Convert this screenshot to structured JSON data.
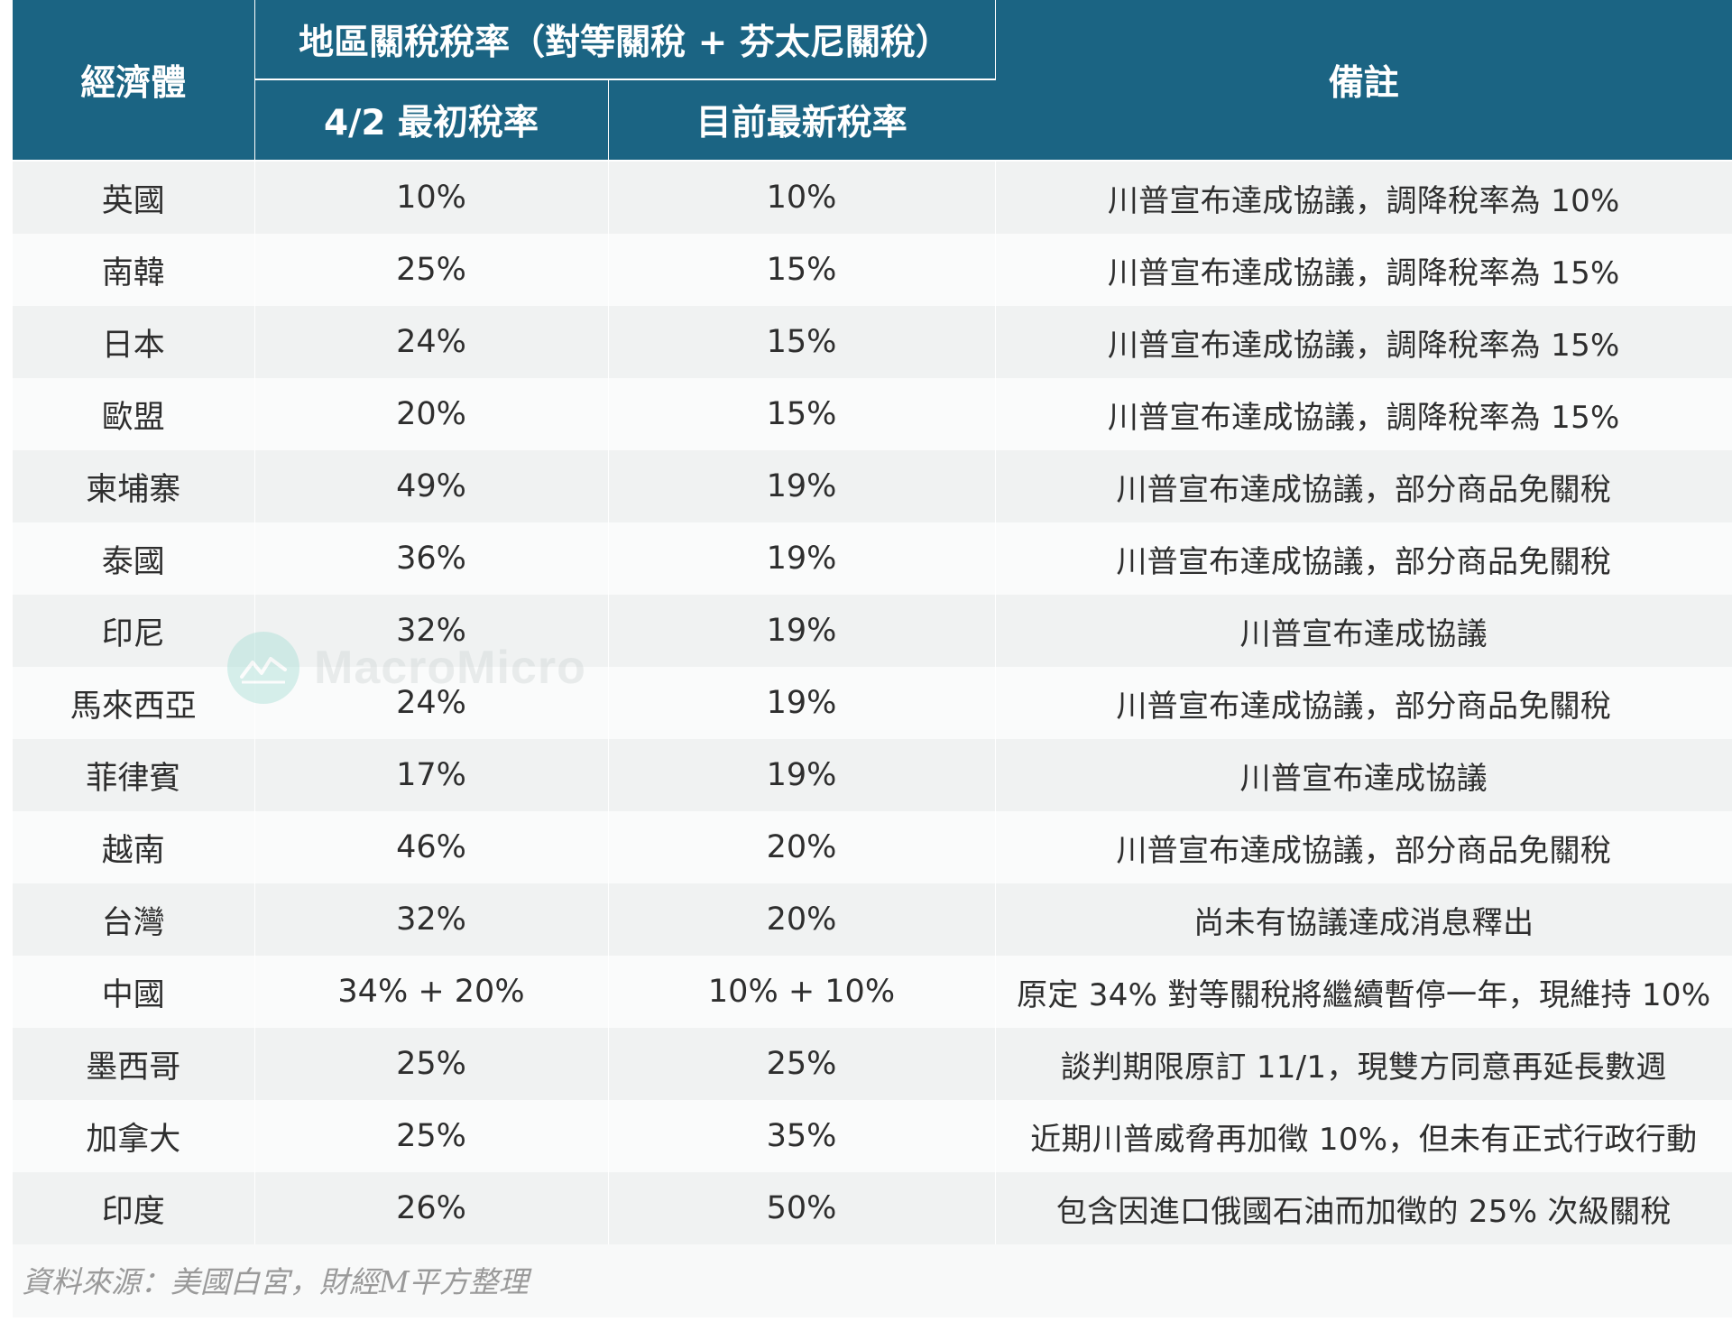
{
  "table": {
    "headers": {
      "economy": "經濟體",
      "regional_tariff": "地區關稅稅率（對等關稅 + 芬太尼關稅）",
      "initial_rate": "4/2 最初稅率",
      "current_rate": "目前最新稅率",
      "notes": "備註"
    },
    "rows": [
      {
        "economy": "英國",
        "initial": "10%",
        "current": "10%",
        "note": "川普宣布達成協議，調降稅率為 10%"
      },
      {
        "economy": "南韓",
        "initial": "25%",
        "current": "15%",
        "note": "川普宣布達成協議，調降稅率為 15%"
      },
      {
        "economy": "日本",
        "initial": "24%",
        "current": "15%",
        "note": "川普宣布達成協議，調降稅率為 15%"
      },
      {
        "economy": "歐盟",
        "initial": "20%",
        "current": "15%",
        "note": "川普宣布達成協議，調降稅率為 15%"
      },
      {
        "economy": "柬埔寨",
        "initial": "49%",
        "current": "19%",
        "note": "川普宣布達成協議，部分商品免關稅"
      },
      {
        "economy": "泰國",
        "initial": "36%",
        "current": "19%",
        "note": "川普宣布達成協議，部分商品免關稅"
      },
      {
        "economy": "印尼",
        "initial": "32%",
        "current": "19%",
        "note": "川普宣布達成協議"
      },
      {
        "economy": "馬來西亞",
        "initial": "24%",
        "current": "19%",
        "note": "川普宣布達成協議，部分商品免關稅"
      },
      {
        "economy": "菲律賓",
        "initial": "17%",
        "current": "19%",
        "note": "川普宣布達成協議"
      },
      {
        "economy": "越南",
        "initial": "46%",
        "current": "20%",
        "note": "川普宣布達成協議，部分商品免關稅"
      },
      {
        "economy": "台灣",
        "initial": "32%",
        "current": "20%",
        "note": "尚未有協議達成消息釋出"
      },
      {
        "economy": "中國",
        "initial": "34% + 20%",
        "current": "10% + 10%",
        "note": "原定 34% 對等關稅將繼續暫停一年，現維持 10%"
      },
      {
        "economy": "墨西哥",
        "initial": "25%",
        "current": "25%",
        "note": "談判期限原訂 11/1，現雙方同意再延長數週"
      },
      {
        "economy": "加拿大",
        "initial": "25%",
        "current": "35%",
        "note": "近期川普威脅再加徵 10%，但未有正式行政行動"
      },
      {
        "economy": "印度",
        "initial": "26%",
        "current": "50%",
        "note": "包含因進口俄國石油而加徵的 25% 次級關稅"
      }
    ]
  },
  "source": "資料來源：美國白宮，財經M平方整理",
  "watermark": "MacroMicro",
  "colors": {
    "header_bg": "#1b6483",
    "row_odd": "#f0f2f2",
    "row_even": "#fafbfb",
    "text": "#2e2e2e"
  }
}
